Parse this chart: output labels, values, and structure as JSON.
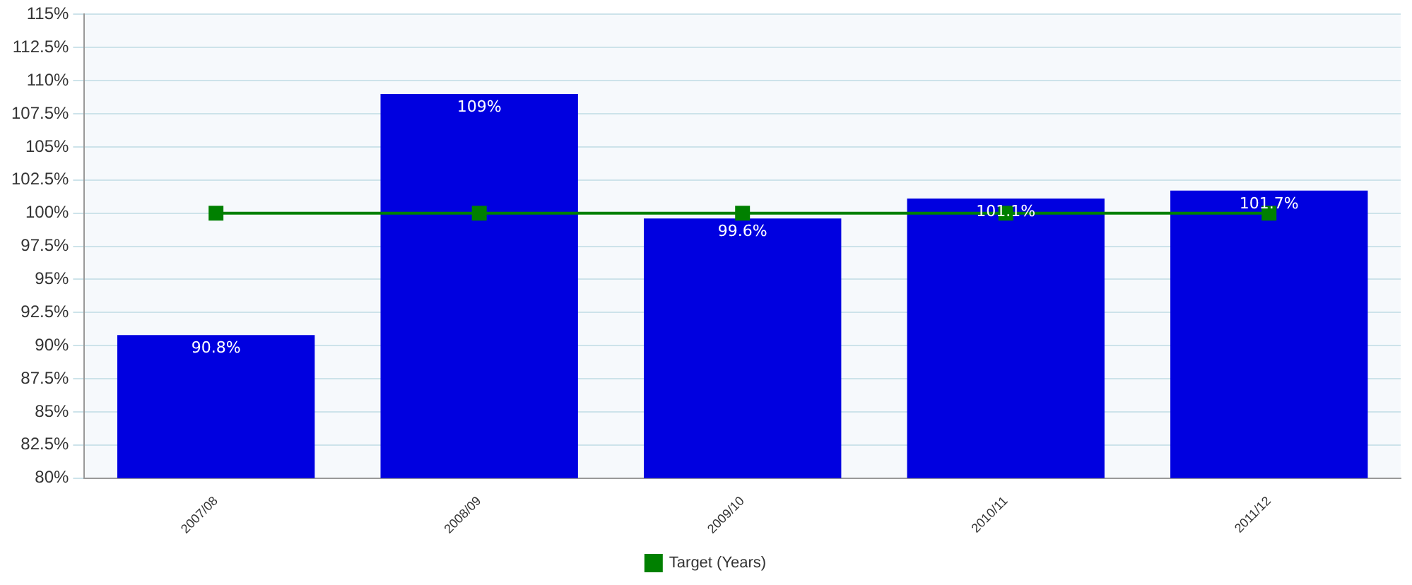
{
  "chart_data": {
    "type": "bar",
    "categories": [
      "2007/08",
      "2008/09",
      "2009/10",
      "2010/11",
      "2011/12"
    ],
    "series": [
      {
        "color": "#0000e0",
        "values": [
          90.8,
          109,
          99.6,
          101.1,
          101.7
        ],
        "value_labels": [
          "90.8%",
          "109%",
          "99.6%",
          "101.1%",
          "101.7%"
        ]
      },
      {
        "type": "line",
        "name": "Target (Years)",
        "color": "#008000",
        "values": [
          100,
          100,
          100,
          100,
          100
        ],
        "marker": "square"
      }
    ],
    "ylim": [
      80,
      115
    ],
    "yticks": [
      {
        "value": 80,
        "label": "80%"
      },
      {
        "value": 82.5,
        "label": "82.5%"
      },
      {
        "value": 85,
        "label": "85%"
      },
      {
        "value": 87.5,
        "label": "87.5%"
      },
      {
        "value": 90,
        "label": "90%"
      },
      {
        "value": 92.5,
        "label": "92.5%"
      },
      {
        "value": 95,
        "label": "95%"
      },
      {
        "value": 97.5,
        "label": "97.5%"
      },
      {
        "value": 100,
        "label": "100%"
      },
      {
        "value": 102.5,
        "label": "102.5%"
      },
      {
        "value": 105,
        "label": "105%"
      },
      {
        "value": 107.5,
        "label": "107.5%"
      },
      {
        "value": 110,
        "label": "110%"
      },
      {
        "value": 112.5,
        "label": "112.5%"
      },
      {
        "value": 115,
        "label": "115%"
      }
    ],
    "grid": "y",
    "legend": "bottom"
  }
}
